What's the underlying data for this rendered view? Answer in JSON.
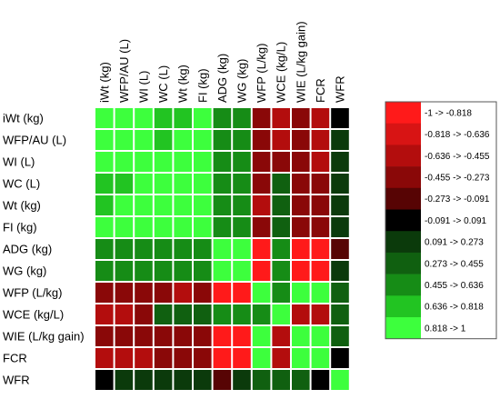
{
  "chart_data": {
    "type": "heatmap",
    "title": "",
    "row_labels": [
      "iWt (kg)",
      "WFP/AU (L)",
      "WI (L)",
      "WC (L)",
      "Wt (kg)",
      "FI (kg)",
      "ADG (kg)",
      "WG (kg)",
      "WFP (L/kg)",
      "WCE (kg/L)",
      "WIE (L/kg gain)",
      "FCR",
      "WFR"
    ],
    "col_labels": [
      "iWt (kg)",
      "WFP/AU (L)",
      "WI (L)",
      "WC (L)",
      "Wt (kg)",
      "FI (kg)",
      "ADG (kg)",
      "WG (kg)",
      "WFP (L/kg)",
      "WCE (kg/L)",
      "WIE (L/kg gain)",
      "FCR",
      "WFR"
    ],
    "values": [
      [
        1,
        0.909,
        0.909,
        0.727,
        0.727,
        0.909,
        0.545,
        0.545,
        -0.364,
        -0.545,
        -0.364,
        -0.545,
        0
      ],
      [
        0.909,
        1,
        0.909,
        0.727,
        0.909,
        0.909,
        0.545,
        0.545,
        -0.364,
        -0.545,
        -0.364,
        -0.545,
        0.182
      ],
      [
        0.909,
        0.909,
        1,
        0.909,
        0.909,
        0.909,
        0.545,
        0.545,
        -0.364,
        -0.364,
        -0.364,
        -0.545,
        0.182
      ],
      [
        0.727,
        0.727,
        0.909,
        1,
        0.909,
        0.909,
        0.545,
        0.545,
        -0.364,
        0.364,
        -0.364,
        -0.364,
        0.182
      ],
      [
        0.727,
        0.909,
        0.909,
        0.909,
        1,
        0.909,
        0.545,
        0.545,
        -0.545,
        0.364,
        -0.364,
        -0.364,
        0.182
      ],
      [
        0.909,
        0.909,
        0.909,
        0.909,
        0.909,
        1,
        0.545,
        0.545,
        -0.364,
        0.364,
        -0.364,
        -0.364,
        0.182
      ],
      [
        0.545,
        0.545,
        0.545,
        0.545,
        0.545,
        0.545,
        1,
        0.909,
        -0.909,
        0.545,
        -0.909,
        -0.909,
        -0.182
      ],
      [
        0.545,
        0.545,
        0.545,
        0.545,
        0.545,
        0.545,
        0.909,
        1,
        -0.909,
        0.545,
        -0.909,
        -0.909,
        0.182
      ],
      [
        -0.364,
        -0.364,
        -0.364,
        -0.364,
        -0.545,
        -0.364,
        -0.909,
        -0.909,
        1,
        0.545,
        0.909,
        0.909,
        0.364
      ],
      [
        -0.545,
        -0.545,
        -0.364,
        0.364,
        0.364,
        0.364,
        0.545,
        0.545,
        0.545,
        1,
        -0.545,
        -0.545,
        0.364
      ],
      [
        -0.364,
        -0.364,
        -0.364,
        -0.364,
        -0.364,
        -0.364,
        -0.909,
        -0.909,
        0.909,
        -0.545,
        1,
        0.909,
        0.364
      ],
      [
        -0.545,
        -0.545,
        -0.545,
        -0.364,
        -0.364,
        -0.364,
        -0.909,
        -0.909,
        0.909,
        -0.545,
        0.909,
        1,
        0
      ],
      [
        0,
        0.182,
        0.182,
        0.182,
        0.182,
        0.182,
        -0.182,
        0.182,
        0.364,
        0.364,
        0.364,
        0,
        1
      ]
    ],
    "color_scale": {
      "bins": [
        {
          "label": "-1 -> -0.818",
          "color": "#ff1a1a"
        },
        {
          "label": "-0.818 -> -0.636",
          "color": "#d81414"
        },
        {
          "label": "-0.636 -> -0.455",
          "color": "#b30d0d"
        },
        {
          "label": "-0.455 -> -0.273",
          "color": "#8a0808"
        },
        {
          "label": "-0.273 -> -0.091",
          "color": "#570404"
        },
        {
          "label": "-0.091 -> 0.091",
          "color": "#000000"
        },
        {
          "label": "0.091 -> 0.273",
          "color": "#0b3a0b"
        },
        {
          "label": "0.273 -> 0.455",
          "color": "#106010"
        },
        {
          "label": "0.455 -> 0.636",
          "color": "#168c16"
        },
        {
          "label": "0.636 -> 0.818",
          "color": "#22c422"
        },
        {
          "label": "0.818 -> 1",
          "color": "#3dff3d"
        }
      ],
      "range": [
        -1,
        1
      ]
    },
    "legend_position": "right"
  }
}
